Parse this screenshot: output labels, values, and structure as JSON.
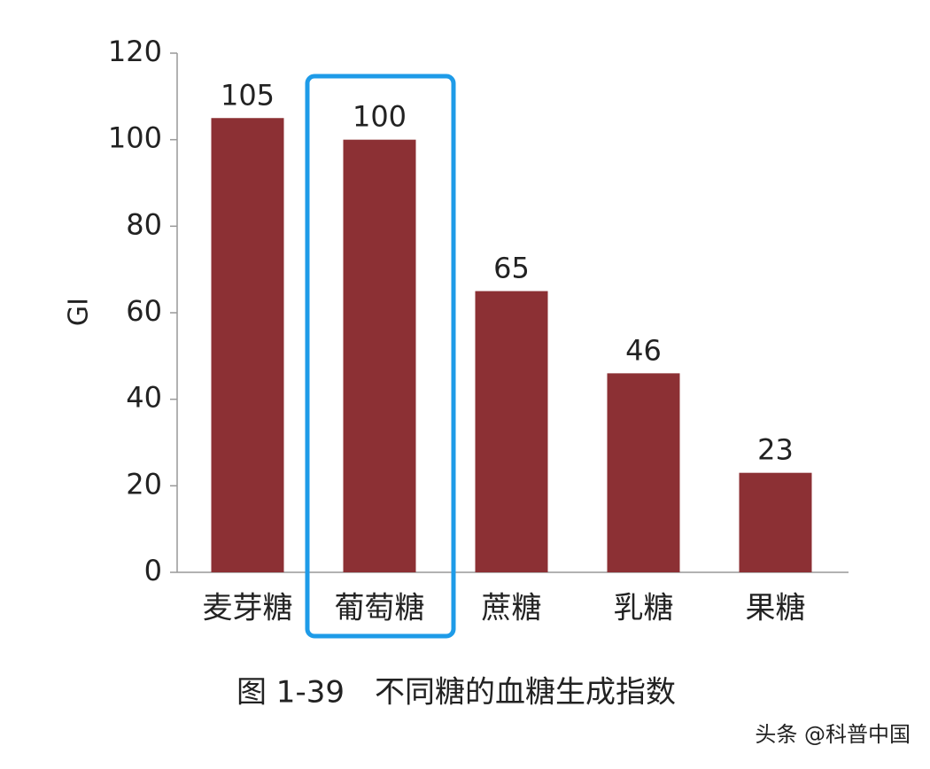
{
  "chart_data": {
    "type": "bar",
    "caption": "图 1-39　不同糖的血糖生成指数",
    "y_label": "GI",
    "categories": [
      "麦芽糖",
      "葡萄糖",
      "蔗糖",
      "乳糖",
      "果糖"
    ],
    "values": [
      105,
      100,
      65,
      46,
      23
    ],
    "color": "#8c3034",
    "ylim": [
      0,
      120
    ],
    "yticks": [
      0,
      20,
      40,
      60,
      80,
      100,
      120
    ],
    "grid": false,
    "data_labels": true
  },
  "watermark": "头条 @科普中国"
}
